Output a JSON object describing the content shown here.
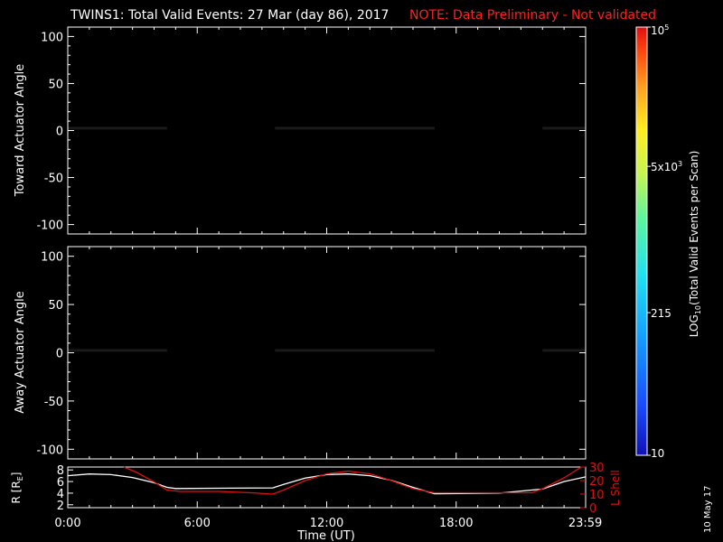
{
  "header": {
    "title": "TWINS1: Total Valid Events: 27 Mar (day  86), 2017",
    "note": "NOTE: Data Preliminary - Not validated"
  },
  "colors": {
    "note": "#ff2020",
    "lshell": "#dd1111",
    "radius": "#ffffff"
  },
  "footer": {
    "date_stamp": "10 May 17"
  },
  "chart_data": [
    {
      "type": "heatmap",
      "id": "toward",
      "ylabel": "Toward Actuator Angle",
      "xlabel": "",
      "xlim": [
        0,
        24
      ],
      "ylim": [
        -110,
        110
      ],
      "yticks": [
        -100,
        -50,
        0,
        50,
        100
      ],
      "data_extent_y": [
        -90,
        90
      ],
      "segments": [
        {
          "t0": 0.0,
          "t1": 4.6,
          "profile": [
            [
              0.0,
              0.55
            ],
            [
              0.4,
              0.5
            ],
            [
              1.0,
              0.56
            ],
            [
              1.6,
              0.52
            ],
            [
              2.2,
              0.48
            ],
            [
              2.8,
              0.6
            ],
            [
              3.3,
              0.72
            ],
            [
              3.8,
              0.78
            ],
            [
              4.3,
              0.74
            ],
            [
              4.6,
              0.7
            ]
          ]
        },
        {
          "t0": 9.6,
          "t1": 17.0,
          "profile": [
            [
              9.6,
              0.38
            ],
            [
              10.0,
              0.33
            ],
            [
              10.3,
              0.6
            ],
            [
              10.6,
              0.4
            ],
            [
              11.0,
              0.62
            ],
            [
              11.4,
              0.55
            ],
            [
              11.8,
              0.7
            ],
            [
              12.0,
              0.35
            ],
            [
              13.0,
              0.28
            ],
            [
              14.5,
              0.3
            ],
            [
              16.0,
              0.32
            ],
            [
              17.0,
              0.34
            ]
          ]
        },
        {
          "t0": 22.0,
          "t1": 24.0,
          "profile": [
            [
              22.0,
              0.68
            ],
            [
              22.6,
              0.7
            ],
            [
              23.2,
              0.66
            ],
            [
              23.6,
              0.58
            ],
            [
              24.0,
              0.5
            ]
          ]
        }
      ]
    },
    {
      "type": "heatmap",
      "id": "away",
      "ylabel": "Away Actuator Angle",
      "xlabel": "",
      "xlim": [
        0,
        24
      ],
      "ylim": [
        -110,
        110
      ],
      "yticks": [
        -100,
        -50,
        0,
        50,
        100
      ],
      "data_extent_y": [
        -90,
        90
      ],
      "segments": [
        {
          "t0": 0.0,
          "t1": 4.6,
          "profile": [
            [
              0.0,
              0.64
            ],
            [
              0.6,
              0.66
            ],
            [
              1.4,
              0.62
            ],
            [
              2.2,
              0.66
            ],
            [
              3.0,
              0.72
            ],
            [
              3.6,
              0.8
            ],
            [
              4.2,
              0.82
            ],
            [
              4.6,
              0.8
            ]
          ]
        },
        {
          "t0": 9.6,
          "t1": 17.0,
          "profile": [
            [
              9.6,
              0.42
            ],
            [
              10.0,
              0.38
            ],
            [
              10.5,
              0.56
            ],
            [
              11.0,
              0.62
            ],
            [
              11.5,
              0.72
            ],
            [
              11.9,
              0.44
            ],
            [
              12.5,
              0.36
            ],
            [
              14.0,
              0.36
            ],
            [
              16.0,
              0.36
            ],
            [
              17.0,
              0.38
            ]
          ]
        },
        {
          "t0": 22.0,
          "t1": 24.0,
          "profile": [
            [
              22.0,
              0.76
            ],
            [
              22.6,
              0.78
            ],
            [
              23.2,
              0.75
            ],
            [
              23.6,
              0.7
            ],
            [
              24.0,
              0.64
            ]
          ]
        }
      ]
    },
    {
      "type": "line",
      "id": "orbit",
      "xlabel": "Time (UT)",
      "xlim": [
        0,
        24
      ],
      "xticks": [
        0,
        6,
        12,
        18,
        23.983
      ],
      "xtick_labels": [
        "0:00",
        "6:00",
        "12:00",
        "18:00",
        "23:59"
      ],
      "left_axis": {
        "label": "R [R",
        "label_subscript": "E",
        "label_close": "]",
        "ylim": [
          1.5,
          8.5
        ],
        "yticks": [
          2,
          4,
          6,
          8
        ]
      },
      "right_axis": {
        "label": "L Shell",
        "ylim": [
          0,
          30
        ],
        "yticks": [
          0,
          10,
          20,
          30
        ]
      },
      "series": [
        {
          "name": "R",
          "axis": "left",
          "x": [
            0,
            1,
            2,
            3,
            4,
            4.6,
            5.0,
            9.5,
            10.0,
            11.0,
            12.0,
            13.0,
            14.0,
            15.0,
            16.0,
            17.0,
            20.0,
            22.0,
            23.0,
            24.0
          ],
          "y": [
            7.0,
            7.3,
            7.2,
            6.7,
            5.8,
            5.0,
            4.8,
            4.9,
            5.5,
            6.6,
            7.2,
            7.3,
            7.0,
            6.2,
            5.0,
            3.9,
            4.0,
            4.7,
            6.0,
            6.8
          ]
        },
        {
          "name": "L Shell",
          "axis": "right",
          "x": [
            2.6,
            3.2,
            4.0,
            4.6,
            5.2,
            7.0,
            8.5,
            9.5,
            10.0,
            11.0,
            12.0,
            13.0,
            14.0,
            15.0,
            16.0,
            17.0,
            18.0,
            20.0,
            21.5,
            22.0,
            23.0,
            23.8
          ],
          "y": [
            30,
            26,
            19,
            13,
            12,
            12,
            11,
            10,
            13,
            20,
            25,
            27,
            25,
            20,
            14,
            11,
            11,
            11,
            11,
            14,
            22,
            30
          ]
        }
      ]
    }
  ],
  "colorbar": {
    "label": "LOG",
    "label_sub": "10",
    "label_rest": "(Total Valid Events per Scan)",
    "scale": "log",
    "range": [
      10,
      100000
    ],
    "tick_labels": [
      {
        "value": 10,
        "text": "10"
      },
      {
        "value": 215,
        "text": "215"
      },
      {
        "value": 5000,
        "text": "5x10",
        "sup": "3"
      },
      {
        "value": 100000,
        "text": "10",
        "sup": "5"
      }
    ]
  }
}
